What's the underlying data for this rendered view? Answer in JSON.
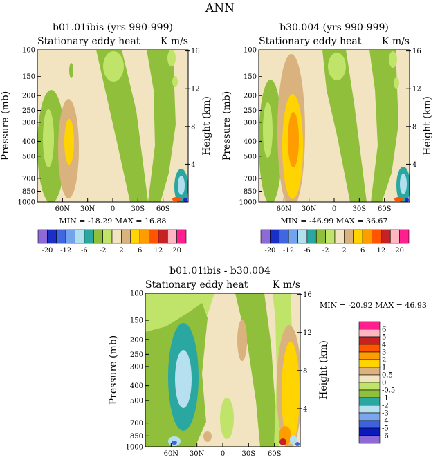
{
  "figure_title": "ANN",
  "palette": {
    "abs": [
      "#8e6ad6",
      "#1a2fc6",
      "#4167e0",
      "#74a3ee",
      "#b2dfee",
      "#2aa7a0",
      "#8fbf3b",
      "#c0e46a",
      "#f2e4c0",
      "#d9b27e",
      "#ffd400",
      "#ff9d00",
      "#ff5400",
      "#c62224",
      "#ffb6c1",
      "#ff1f8e"
    ],
    "diff": [
      "#8e6ad6",
      "#0a1abf",
      "#3c62df",
      "#7aa5ef",
      "#b6e0ef",
      "#2aa7a0",
      "#8fbf3b",
      "#c0e46a",
      "#f2e4c0",
      "#d9b27e",
      "#ffd400",
      "#ff9d00",
      "#ff5400",
      "#c62224",
      "#ffb6c1",
      "#ff1f8e"
    ]
  },
  "common": {
    "subtitle_left": "Stationary eddy heat",
    "subtitle_right": "K m/s",
    "ylabel_left": "Pressure (mb)",
    "ylabel_right": "Height (km)"
  },
  "chart_data": [
    {
      "type": "heatmap",
      "title": "b01.01ibis (yrs 990-999)",
      "x_ticks": [
        "60N",
        "30N",
        "0",
        "30S",
        "60S"
      ],
      "y_ticks": [
        "100",
        "150",
        "200",
        "250",
        "300",
        "400",
        "500",
        "700",
        "850",
        "1000"
      ],
      "y2_ticks": [
        "16",
        "12",
        "8",
        "4"
      ],
      "stats_label": "MIN = -18.29   MAX =  16.88",
      "min": -18.29,
      "max": 16.88
    },
    {
      "type": "heatmap",
      "title": "b30.004 (yrs 990-999)",
      "x_ticks": [
        "60N",
        "30N",
        "0",
        "30S",
        "60S"
      ],
      "y_ticks": [
        "100",
        "150",
        "200",
        "250",
        "300",
        "400",
        "500",
        "700",
        "850",
        "1000"
      ],
      "y2_ticks": [
        "16",
        "12",
        "8",
        "4"
      ],
      "stats_label": "MIN = -46.99   MAX =  36.67",
      "min": -46.99,
      "max": 36.67
    },
    {
      "type": "heatmap",
      "title": "b01.01ibis - b30.004",
      "x_ticks": [
        "60N",
        "30N",
        "0",
        "30S",
        "60S"
      ],
      "y_ticks": [
        "100",
        "150",
        "200",
        "250",
        "300",
        "400",
        "500",
        "700",
        "850",
        "1000"
      ],
      "y2_ticks": [
        "16",
        "12",
        "8",
        "4"
      ],
      "stats_label": "MIN = -20.92   MAX =  46.93",
      "min": -20.92,
      "max": 46.93
    }
  ],
  "colorbar_abs": {
    "labels": [
      "-20",
      "-12",
      "-6",
      "-2",
      "2",
      "6",
      "12",
      "20"
    ]
  },
  "colorbar_diff": {
    "labels": [
      "6",
      "5",
      "4",
      "3",
      "2",
      "1",
      "0.5",
      "0",
      "-0.5",
      "-1",
      "-2",
      "-3",
      "-4",
      "-5",
      "-6"
    ]
  }
}
